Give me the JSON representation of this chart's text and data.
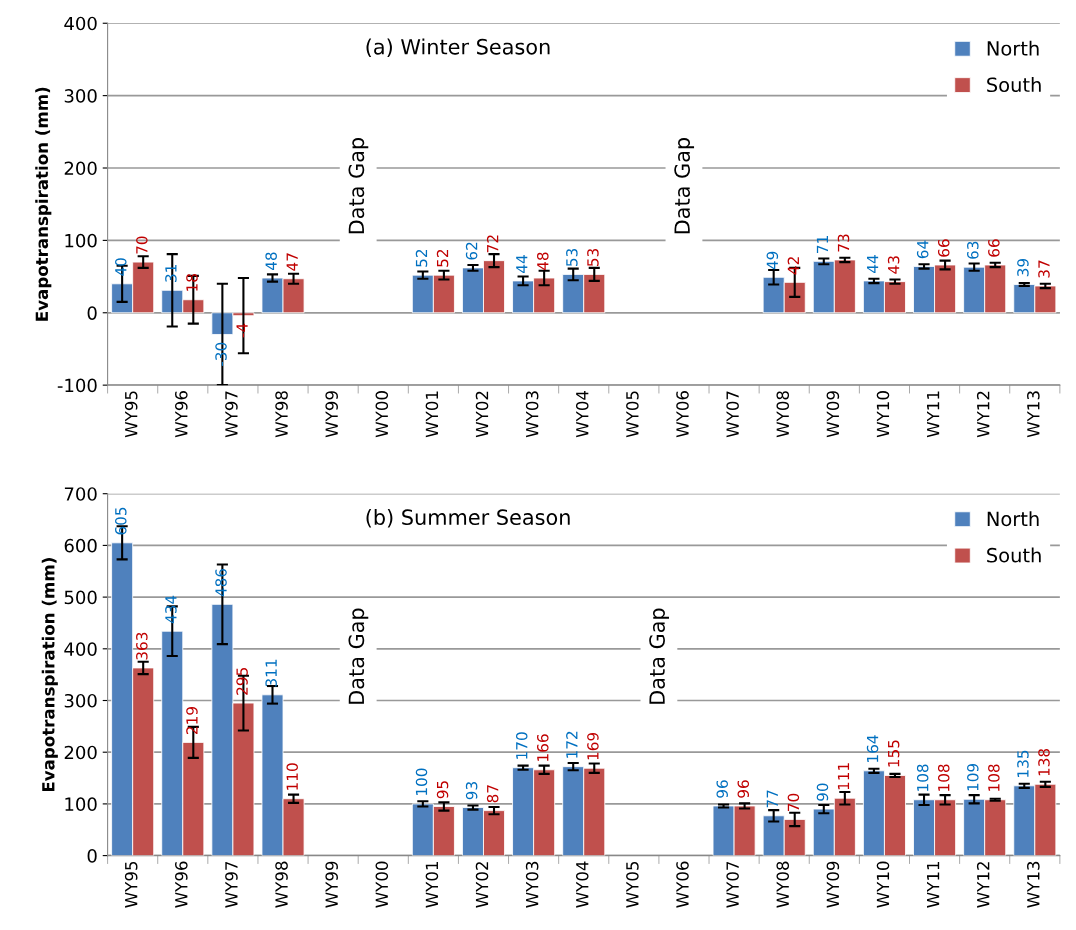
{
  "chart_data": [
    {
      "type": "bar",
      "title": "(a) Winter Season",
      "ylabel": "Evapotranspiration (mm)",
      "categories": [
        "WY95",
        "WY96",
        "WY97",
        "WY98",
        "WY99",
        "WY00",
        "WY01",
        "WY02",
        "WY03",
        "WY04",
        "WY05",
        "WY06",
        "WY07",
        "WY08",
        "WY09",
        "WY10",
        "WY11",
        "WY12",
        "WY13"
      ],
      "series": [
        {
          "name": "North",
          "color": "#4f81bd",
          "values": [
            40,
            31,
            -30,
            48,
            null,
            null,
            52,
            62,
            44,
            53,
            null,
            null,
            null,
            49,
            71,
            44,
            64,
            63,
            39
          ],
          "errors": [
            25,
            50,
            70,
            5,
            null,
            null,
            5,
            4,
            6,
            8,
            null,
            null,
            null,
            10,
            4,
            3,
            3,
            5,
            2
          ]
        },
        {
          "name": "South",
          "color": "#c0504d",
          "values": [
            70,
            18,
            -4,
            47,
            null,
            null,
            52,
            72,
            48,
            53,
            null,
            null,
            null,
            42,
            73,
            43,
            66,
            66,
            37
          ],
          "errors": [
            8,
            33,
            52,
            7,
            null,
            null,
            6,
            9,
            10,
            9,
            null,
            null,
            null,
            20,
            3,
            3,
            6,
            3,
            3
          ]
        }
      ],
      "ylim": [
        -100,
        400
      ],
      "yticks": [
        -100,
        0,
        100,
        200,
        300,
        400
      ],
      "grid": "y",
      "legend": "top right",
      "data_labels": true,
      "annotations": [
        "Data Gap",
        "Data Gap"
      ]
    },
    {
      "type": "bar",
      "title": "(b) Summer Season",
      "ylabel": "Evapotranspiration (mm)",
      "categories": [
        "WY95",
        "WY96",
        "WY97",
        "WY98",
        "WY99",
        "WY00",
        "WY01",
        "WY02",
        "WY03",
        "WY04",
        "WY05",
        "WY06",
        "WY07",
        "WY08",
        "WY09",
        "WY10",
        "WY11",
        "WY12",
        "WY13"
      ],
      "series": [
        {
          "name": "North",
          "color": "#4f81bd",
          "values": [
            605,
            434,
            486,
            311,
            null,
            null,
            100,
            93,
            170,
            172,
            null,
            null,
            96,
            77,
            90,
            164,
            108,
            109,
            135
          ],
          "errors": [
            32,
            48,
            77,
            17,
            null,
            null,
            5,
            4,
            4,
            7,
            null,
            null,
            3,
            11,
            8,
            4,
            10,
            8,
            4
          ]
        },
        {
          "name": "South",
          "color": "#c0504d",
          "values": [
            363,
            219,
            295,
            110,
            null,
            null,
            95,
            87,
            166,
            169,
            null,
            null,
            96,
            70,
            111,
            155,
            108,
            108,
            138
          ],
          "errors": [
            12,
            30,
            53,
            8,
            null,
            null,
            8,
            7,
            8,
            9,
            null,
            null,
            5,
            13,
            12,
            3,
            9,
            2,
            5
          ]
        }
      ],
      "ylim": [
        0,
        700
      ],
      "yticks": [
        0,
        100,
        200,
        300,
        400,
        500,
        600,
        700
      ],
      "grid": "y",
      "legend": "top right",
      "data_labels": true,
      "annotations": [
        "Data Gap",
        "Data Gap"
      ]
    }
  ]
}
